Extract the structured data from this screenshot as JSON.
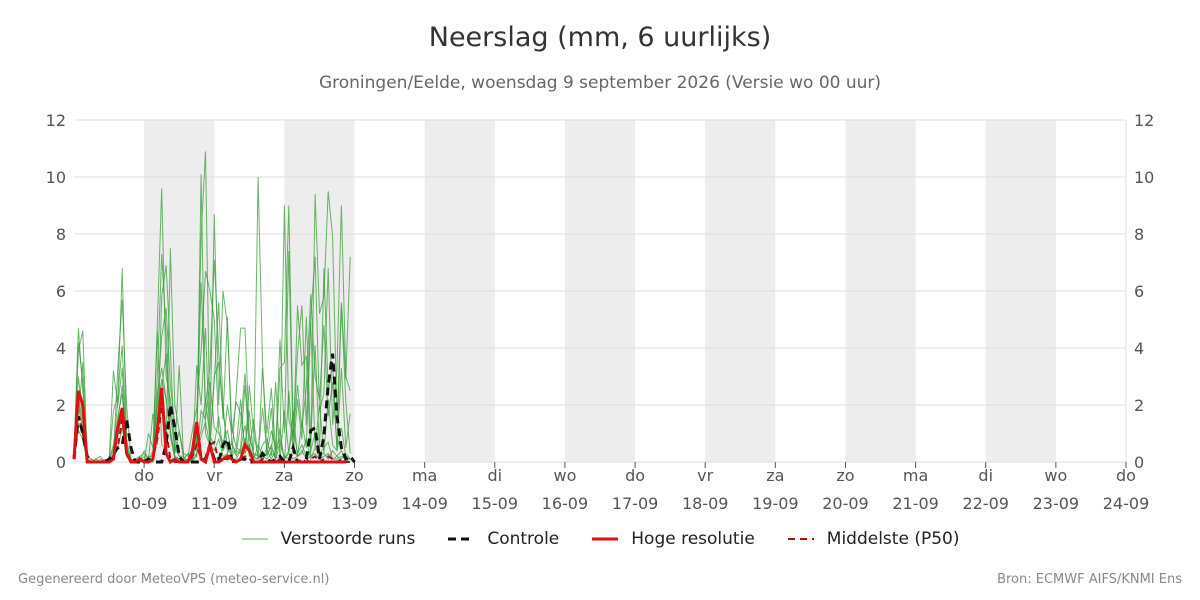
{
  "title": "Neerslag (mm, 6 uurlijks)",
  "subtitle": "Groningen/Eelde, woensdag  9 september 2026 (Versie wo 00 uur)",
  "footer": {
    "left": "Gegenereerd door MeteoVPS (meteo-service.nl)",
    "right": "Bron: ECMWF AIFS/KNMI Ens"
  },
  "legend": {
    "perturbed": "Verstoorde runs",
    "control": "Controle",
    "hires": "Hoge resolutie",
    "median": "Middelste (P50)"
  },
  "colors": {
    "perturbed": "#3a9c3a",
    "control": "#111111",
    "hires": "#dd1111",
    "median": "#aa1111",
    "weekend_band": "#ededed",
    "grid": "#dddddd"
  },
  "chart_data": {
    "type": "line",
    "x_unit": "6-hour steps from 09-09 00 uur",
    "xlim": [
      0,
      60
    ],
    "ylim": [
      0,
      12
    ],
    "yticks": [
      0,
      2,
      4,
      6,
      8,
      10,
      12
    ],
    "grid": true,
    "legend_position": "bottom",
    "x_ticks": [
      {
        "x": 4,
        "day": "do",
        "date": "10-09"
      },
      {
        "x": 8,
        "day": "vr",
        "date": "11-09"
      },
      {
        "x": 12,
        "day": "za",
        "date": "12-09"
      },
      {
        "x": 16,
        "day": "zo",
        "date": "13-09"
      },
      {
        "x": 20,
        "day": "ma",
        "date": "14-09"
      },
      {
        "x": 24,
        "day": "di",
        "date": "15-09"
      },
      {
        "x": 28,
        "day": "wo",
        "date": "16-09"
      },
      {
        "x": 32,
        "day": "do",
        "date": "17-09"
      },
      {
        "x": 36,
        "day": "vr",
        "date": "18-09"
      },
      {
        "x": 40,
        "day": "za",
        "date": "19-09"
      },
      {
        "x": 44,
        "day": "zo",
        "date": "20-09"
      },
      {
        "x": 48,
        "day": "ma",
        "date": "21-09"
      },
      {
        "x": 52,
        "day": "di",
        "date": "22-09"
      },
      {
        "x": 56,
        "day": "wo",
        "date": "23-09"
      },
      {
        "x": 60,
        "day": "do",
        "date": "24-09"
      }
    ],
    "shaded_bands": [
      [
        4,
        8
      ],
      [
        12,
        16
      ],
      [
        20,
        24
      ],
      [
        28,
        32
      ],
      [
        36,
        40
      ],
      [
        44,
        48
      ],
      [
        52,
        56
      ]
    ],
    "control": [
      0.1,
      1.6,
      1.0,
      0.2,
      0,
      0,
      0,
      0,
      0.1,
      0.3,
      0.5,
      0.6,
      1.5,
      0.5,
      0,
      0,
      0,
      0.1,
      0,
      0,
      0,
      0.6,
      2.0,
      1.2,
      0.2,
      0,
      0,
      0,
      0,
      0,
      0.1,
      0.6,
      0.1,
      0,
      0.6,
      0.8,
      0.1,
      0,
      0.1,
      0.1,
      0,
      0,
      0,
      0.3,
      0.1,
      0,
      0.1,
      0.2,
      0,
      0,
      0.5,
      0,
      0,
      0.1,
      1.1,
      1.2,
      0.1,
      0.9,
      2.7,
      3.8,
      1.6,
      0.5,
      0.1,
      0.2,
      0
    ],
    "hires": [
      0.1,
      2.5,
      2.0,
      0,
      0,
      0,
      0,
      0,
      0,
      0.1,
      1.2,
      1.9,
      0.3,
      0,
      0,
      0.1,
      0,
      0,
      0.1,
      1.1,
      2.6,
      0.3,
      0,
      0.1,
      0,
      0,
      0,
      0.4,
      1.4,
      0.1,
      0,
      0.6,
      0,
      0,
      0.1,
      0.2,
      0.1,
      0,
      0.1,
      0.6,
      0.4,
      0,
      0,
      0,
      0,
      0,
      0,
      0,
      0,
      0,
      0,
      0,
      0,
      0,
      0,
      0,
      0,
      0,
      0,
      0,
      0,
      0,
      0
    ],
    "median": [
      0.1,
      1.6,
      1.0,
      0.1,
      0,
      0,
      0,
      0,
      0,
      0.2,
      0.5,
      1.5,
      0.3,
      0,
      0,
      0.1,
      0,
      0,
      0.1,
      0.8,
      1.9,
      1.1,
      0.1,
      0,
      0,
      0,
      0,
      0.2,
      0.6,
      0.1,
      0.1,
      0.6,
      0.7,
      0,
      0.1,
      0.1,
      0,
      0,
      0.1,
      0.2,
      0.1,
      0,
      0,
      0.1,
      0,
      0,
      0,
      0.1,
      0,
      0,
      0,
      0,
      0.1,
      0,
      0.1,
      0.2,
      0,
      0.1,
      0.2,
      0.1,
      0,
      0.1,
      0,
      0,
      0
    ],
    "perturbed_runs": [
      [
        0.3,
        4.7,
        2.5,
        0,
        0.1,
        0,
        0,
        0,
        0,
        0.2,
        3.3,
        5.7,
        2.0,
        0.1,
        0,
        0,
        0,
        1.0,
        0.5,
        4.6,
        0.6,
        0.5,
        7.5,
        2.0,
        1.1,
        0.1,
        0,
        0.3,
        0.2,
        10.1,
        1.0,
        0.6,
        3.0,
        3.5,
        1.8,
        0.5,
        0.2,
        2.4,
        4.7,
        4.7,
        1.0,
        0.2,
        0.3,
        1.9,
        0.4,
        0.1,
        0.4,
        4.3,
        1.0,
        7.4,
        0.5,
        5.5,
        3.4,
        3.7,
        0.2,
        9.4,
        5.2,
        5.8,
        9.5,
        7.9,
        1.5,
        5.5,
        2.1,
        0.3
      ],
      [
        0.5,
        3.9,
        4.6,
        0.1,
        0,
        0,
        0,
        0,
        0,
        0.5,
        2.1,
        6.8,
        0.8,
        0,
        0.1,
        0.2,
        0.3,
        0.1,
        0.1,
        4.8,
        9.6,
        3.0,
        2.2,
        0.3,
        3.4,
        0.1,
        0.3,
        0,
        1.0,
        7.9,
        10.9,
        1.0,
        8.7,
        2.0,
        6.0,
        4.8,
        1.2,
        0.5,
        2.2,
        0.3,
        2.7,
        1.0,
        0.2,
        0.1,
        0.5,
        1.9,
        0,
        3.3,
        3.5,
        9.0,
        1.0,
        3.8,
        5.5,
        1.3,
        5.1,
        7.2,
        1.8,
        2.4,
        6.8,
        1.3,
        3.3,
        9.0,
        3.0,
        2.5
      ],
      [
        0.2,
        2.1,
        1.0,
        0.2,
        0.1,
        0,
        0,
        0.1,
        0,
        1.8,
        2.3,
        4.1,
        0.6,
        0.1,
        0,
        0.2,
        0,
        0.2,
        0.2,
        3.0,
        7.3,
        4.5,
        1.6,
        0.5,
        0.2,
        0,
        0.1,
        0.2,
        0.8,
        6.3,
        2.0,
        3.3,
        7.1,
        3.9,
        1.5,
        5.1,
        0.6,
        0.3,
        1.3,
        3.1,
        0.8,
        0.4,
        10.0,
        3.5,
        0.2,
        0.6,
        0.1,
        1.2,
        0,
        2.5,
        0.3,
        2.2,
        0.8,
        5.1,
        0.7,
        4.1,
        0.3,
        6.8,
        2.5,
        3.5,
        0.4,
        5.6,
        2.9,
        7.2
      ],
      [
        0.1,
        1.5,
        3.5,
        0,
        0,
        0.1,
        0.2,
        0,
        0,
        3.2,
        2.0,
        3.3,
        0.3,
        0,
        0.1,
        0,
        0.4,
        0.1,
        1.7,
        0.6,
        5.8,
        6.9,
        3.9,
        0.3,
        1.1,
        0.3,
        0.2,
        1.1,
        1.9,
        3.9,
        6.7,
        6.0,
        5.0,
        1.1,
        0.4,
        2.0,
        1.0,
        2.1,
        1.7,
        0.5,
        1.8,
        0.2,
        0.1,
        3.3,
        1.0,
        2.6,
        0.4,
        0.6,
        9.0,
        1.5,
        0.9,
        2.7,
        1.2,
        2.6,
        5.9,
        3.0,
        2.2,
        4.8,
        1.6,
        2.8,
        0.5,
        3.3,
        0.5,
        1.7
      ],
      [
        0.4,
        3.0,
        1.5,
        0.1,
        0,
        0,
        0.1,
        0,
        0.1,
        0.6,
        1.4,
        2.7,
        0.2,
        0,
        0,
        0.1,
        0,
        0,
        0.4,
        2.1,
        4.4,
        5.4,
        2.7,
        1.3,
        0.2,
        0.2,
        0,
        0.1,
        3.4,
        2.0,
        4.7,
        0.5,
        2.9,
        5.6,
        2.0,
        0.3,
        0.7,
        0.2,
        0.5,
        2.7,
        0.4,
        1.5,
        0.1,
        0.6,
        0.8,
        0.2,
        2.8,
        0.1,
        1.8,
        0.3,
        1.8,
        0.2,
        1.4,
        0.5,
        4.9,
        0.5,
        2.0,
        0.3,
        2.2,
        0.6,
        0.4,
        1.2,
        0.2,
        0.1
      ],
      [
        0.2,
        4.2,
        2.8,
        0.1,
        0,
        0.1,
        0,
        0,
        0,
        0.3,
        1.6,
        2.4,
        0.4,
        0.1,
        0,
        0,
        0.2,
        0,
        0.1,
        2.4,
        3.3,
        2.2,
        1.1,
        0.2,
        0.1,
        0.1,
        0,
        0.1,
        0.2,
        1.8,
        1.5,
        2.8,
        1.2,
        1.0,
        0.7,
        1.1,
        0.3,
        0.5,
        0.4,
        1.3,
        0.2,
        0.3,
        0.2,
        0.1,
        0.3,
        1.1,
        0.5,
        0.8,
        0.1,
        0.4,
        1.2,
        0.3,
        0.6,
        0.2,
        0.4,
        1.0,
        0.3,
        0.5,
        0.7,
        0.1,
        0.2,
        0.4,
        0.1,
        0.1
      ],
      [
        0.1,
        1.1,
        0.8,
        0,
        0,
        0,
        0,
        0,
        0,
        0.1,
        0.5,
        1.2,
        0.2,
        0,
        0,
        0.1,
        0,
        0,
        0,
        1.4,
        2.6,
        3.8,
        0.9,
        0.1,
        0,
        0,
        0,
        0,
        0.3,
        0.9,
        1.4,
        0.6,
        0.4,
        0.8,
        0.2,
        0.3,
        0.1,
        0.1,
        0.4,
        0.3,
        0.6,
        0.1,
        0.1,
        0.2,
        0.1,
        0.3,
        0.2,
        0.1,
        0.1,
        0.3,
        0.1,
        0.2,
        0.4,
        0.1,
        0.2,
        0.3,
        0.1,
        0.2,
        0.3,
        0.1,
        0.1,
        0.2,
        0.1,
        0
      ],
      [
        0.3,
        2.4,
        1.2,
        0,
        0,
        0,
        0,
        0,
        0,
        0.2,
        0.9,
        1.7,
        0.5,
        0,
        0,
        0,
        0.1,
        0,
        0,
        1.9,
        2.9,
        2.2,
        1.0,
        0.2,
        0.1,
        0,
        0.1,
        0.1,
        0.6,
        1.1,
        2.2,
        0.9,
        0.6,
        1.6,
        0.4,
        0.7,
        0.2,
        0.4,
        0.3,
        0.8,
        0.3,
        0.1,
        0.6,
        0.2,
        0.3,
        0.5,
        0.1,
        0.6,
        0.2,
        0.1,
        0.4,
        0.2,
        0.3,
        0.8,
        0.1,
        0.5,
        0.2,
        0.3,
        0.1,
        0.4,
        0.2,
        0.1,
        0.3,
        0.1
      ]
    ]
  }
}
